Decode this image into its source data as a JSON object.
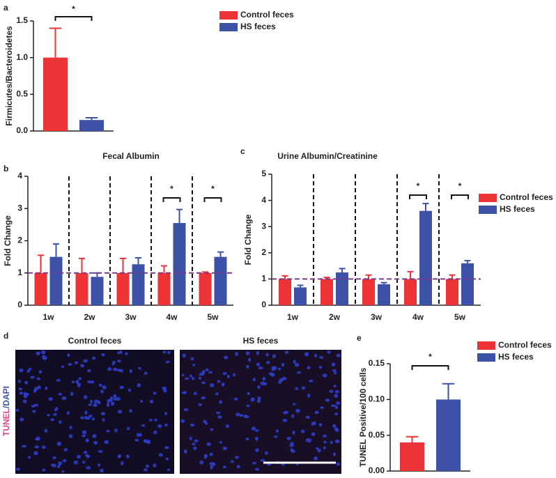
{
  "chart_data": [
    {
      "type": "bar",
      "panel_label": "a",
      "ylabel": "Firmicutes/Bacteroidetes",
      "categories": [
        null
      ],
      "series": [
        {
          "name": "Control feces",
          "color": "#ee3336",
          "values": [
            1.0
          ],
          "errors": [
            0.4
          ]
        },
        {
          "name": "HS feces",
          "color": "#3d52a6",
          "values": [
            0.15
          ],
          "errors": [
            0.03
          ]
        }
      ],
      "ylim": [
        0,
        1.5
      ],
      "yticks": [
        {
          "value": 0,
          "label": "0.0"
        },
        {
          "value": 0.5,
          "label": "0.5"
        },
        {
          "value": 1,
          "label": "1.0"
        },
        {
          "value": 1.5,
          "label": "1.5"
        }
      ],
      "annotations": [
        "*"
      ],
      "legend": "right"
    },
    {
      "type": "bar",
      "panel_label": "b",
      "title": "Fecal Albumin",
      "ylabel": "Fold Change",
      "categories": [
        "1w",
        "2w",
        "3w",
        "4w",
        "5w"
      ],
      "series": [
        {
          "color": "#ee3336",
          "values": [
            1.0,
            1.0,
            1.0,
            1.0,
            1.0
          ],
          "errors": [
            0.55,
            0.45,
            0.45,
            0.22,
            0.03
          ]
        },
        {
          "color": "#3d52a6",
          "values": [
            1.5,
            0.88,
            1.27,
            2.55,
            1.5
          ],
          "errors": [
            0.4,
            0.12,
            0.2,
            0.42,
            0.15
          ]
        }
      ],
      "ylim": [
        0,
        4
      ],
      "yticks": [
        0,
        1,
        2,
        3,
        4
      ],
      "reference_line": 1,
      "annotations": [
        "*",
        "*"
      ]
    },
    {
      "type": "bar",
      "panel_label": "c",
      "title": "Urine Albumin/Creatinine",
      "ylabel": "Fold Change",
      "categories": [
        "1w",
        "2w",
        "3w",
        "4w",
        "5w"
      ],
      "series": [
        {
          "name": "Control feces",
          "color": "#ee3336",
          "values": [
            1.0,
            1.0,
            1.0,
            1.0,
            1.0
          ],
          "errors": [
            0.12,
            0.06,
            0.15,
            0.28,
            0.15
          ]
        },
        {
          "name": "HS feces",
          "color": "#3d52a6",
          "values": [
            0.68,
            1.25,
            0.8,
            3.6,
            1.6
          ],
          "errors": [
            0.08,
            0.15,
            0.06,
            0.28,
            0.1
          ]
        }
      ],
      "ylim": [
        0,
        5
      ],
      "yticks": [
        0,
        1,
        2,
        3,
        4,
        5
      ],
      "reference_line": 1,
      "annotations": [
        "*",
        "*"
      ],
      "legend": "right"
    },
    {
      "type": "bar",
      "panel_label": "e",
      "ylabel": "TUNEL Positive/100 cells",
      "categories": [
        null
      ],
      "series": [
        {
          "name": "Control feces",
          "color": "#ee3336",
          "values": [
            0.04
          ],
          "errors": [
            0.008
          ]
        },
        {
          "name": "HS feces",
          "color": "#3d52a6",
          "values": [
            0.1
          ],
          "errors": [
            0.022
          ]
        }
      ],
      "ylim": [
        0,
        0.15
      ],
      "yticks": [
        {
          "value": 0,
          "label": "0.00"
        },
        {
          "value": 0.05,
          "label": "0.05"
        },
        {
          "value": 0.1,
          "label": "0.10"
        },
        {
          "value": 0.15,
          "label": "0.15"
        }
      ],
      "annotations": [
        "*"
      ],
      "legend": "right"
    }
  ],
  "panel_d": {
    "label": "d",
    "images": [
      "Control feces",
      "HS feces"
    ],
    "stain": [
      "TUNEL",
      "/DAPI"
    ]
  }
}
